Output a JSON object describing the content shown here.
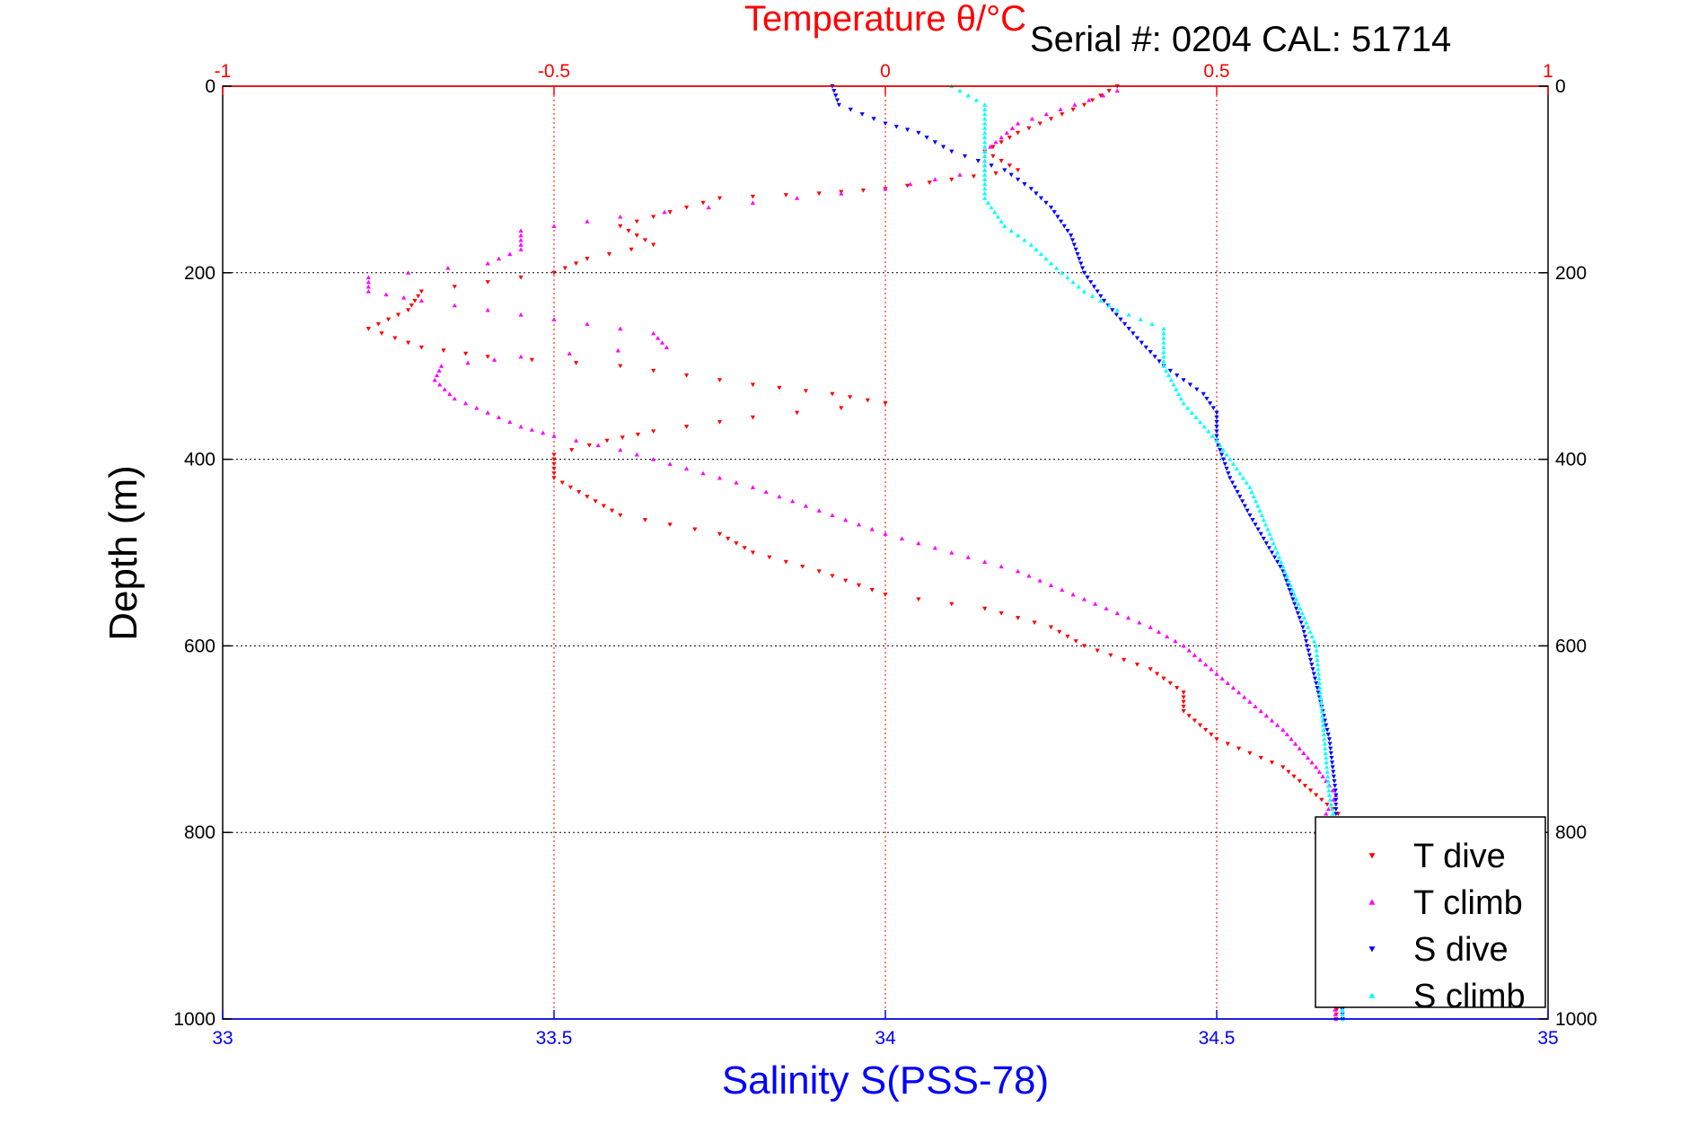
{
  "chart_data": {
    "type": "scatter",
    "title": "Temperature θ/°C",
    "annotation": "Serial #: 0204  CAL: 51714",
    "ylabel": "Depth (m)",
    "xlabel_bottom": "Salinity S(PSS-78)",
    "ylim": [
      0,
      1000
    ],
    "y_reversed": true,
    "x_top_lim": [
      -1,
      1
    ],
    "x_bottom_lim": [
      33,
      35
    ],
    "y_ticks": [
      "0",
      "200",
      "400",
      "600",
      "800",
      "1000"
    ],
    "x_top_ticks": [
      "-1",
      "-0.5",
      "0",
      "0.5",
      "1"
    ],
    "x_bottom_ticks": [
      "33",
      "33.5",
      "34",
      "34.5",
      "35"
    ],
    "grid": true,
    "legend_position": "bottom-right",
    "colors": {
      "temperature_axis": "#ff0000",
      "salinity_axis": "#0000ff",
      "grid_temperature": "#ff0000",
      "grid_depth": "#000000"
    },
    "series": [
      {
        "name": "T dive",
        "axis": "temperature",
        "color": "#ff0000",
        "marker": "triangle-down",
        "points": [
          [
            0.35,
            0
          ],
          [
            0.3,
            20
          ],
          [
            0.25,
            35
          ],
          [
            0.2,
            50
          ],
          [
            0.15,
            70
          ],
          [
            0.2,
            90
          ],
          [
            0.1,
            100
          ],
          [
            0.0,
            110
          ],
          [
            -0.1,
            115
          ],
          [
            -0.25,
            120
          ],
          [
            -0.4,
            150
          ],
          [
            -0.35,
            170
          ],
          [
            -0.45,
            185
          ],
          [
            -0.5,
            200
          ],
          [
            -0.7,
            220
          ],
          [
            -0.72,
            240
          ],
          [
            -0.78,
            260
          ],
          [
            -0.7,
            280
          ],
          [
            -0.6,
            290
          ],
          [
            -0.4,
            300
          ],
          [
            -0.2,
            320
          ],
          [
            -0.08,
            330
          ],
          [
            0.0,
            340
          ],
          [
            -0.2,
            355
          ],
          [
            -0.35,
            370
          ],
          [
            -0.42,
            380
          ],
          [
            -0.5,
            395
          ],
          [
            -0.5,
            420
          ],
          [
            -0.45,
            440
          ],
          [
            -0.4,
            460
          ],
          [
            -0.25,
            480
          ],
          [
            -0.2,
            500
          ],
          [
            -0.1,
            520
          ],
          [
            0.0,
            545
          ],
          [
            0.15,
            560
          ],
          [
            0.25,
            580
          ],
          [
            0.3,
            600
          ],
          [
            0.4,
            625
          ],
          [
            0.45,
            650
          ],
          [
            0.45,
            670
          ],
          [
            0.5,
            700
          ],
          [
            0.6,
            730
          ],
          [
            0.65,
            760
          ],
          [
            0.7,
            790
          ],
          [
            0.68,
            1000
          ]
        ]
      },
      {
        "name": "T climb",
        "axis": "temperature",
        "color": "#ff00ff",
        "marker": "triangle-up",
        "points": [
          [
            0.35,
            5
          ],
          [
            0.2,
            40
          ],
          [
            0.15,
            70
          ],
          [
            0.15,
            90
          ],
          [
            0.0,
            110
          ],
          [
            -0.2,
            125
          ],
          [
            -0.4,
            140
          ],
          [
            -0.55,
            155
          ],
          [
            -0.55,
            175
          ],
          [
            -0.6,
            190
          ],
          [
            -0.78,
            205
          ],
          [
            -0.78,
            220
          ],
          [
            -0.7,
            230
          ],
          [
            -0.5,
            250
          ],
          [
            -0.35,
            265
          ],
          [
            -0.33,
            280
          ],
          [
            -0.55,
            290
          ],
          [
            -0.67,
            300
          ],
          [
            -0.68,
            315
          ],
          [
            -0.65,
            335
          ],
          [
            -0.6,
            350
          ],
          [
            -0.55,
            365
          ],
          [
            -0.5,
            375
          ],
          [
            -0.4,
            390
          ],
          [
            -0.3,
            410
          ],
          [
            -0.2,
            430
          ],
          [
            -0.1,
            455
          ],
          [
            0.0,
            480
          ],
          [
            0.1,
            500
          ],
          [
            0.2,
            520
          ],
          [
            0.3,
            550
          ],
          [
            0.4,
            580
          ],
          [
            0.45,
            600
          ],
          [
            0.5,
            630
          ],
          [
            0.55,
            660
          ],
          [
            0.6,
            690
          ],
          [
            0.65,
            730
          ],
          [
            0.68,
            760
          ],
          [
            0.65,
            800
          ],
          [
            0.68,
            1000
          ]
        ]
      },
      {
        "name": "S dive",
        "axis": "salinity",
        "color": "#0000ff",
        "marker": "triangle-down",
        "points": [
          [
            33.92,
            0
          ],
          [
            33.93,
            20
          ],
          [
            34.0,
            40
          ],
          [
            34.05,
            50
          ],
          [
            34.1,
            70
          ],
          [
            34.18,
            90
          ],
          [
            34.22,
            110
          ],
          [
            34.25,
            130
          ],
          [
            34.28,
            160
          ],
          [
            34.3,
            200
          ],
          [
            34.33,
            230
          ],
          [
            34.38,
            270
          ],
          [
            34.42,
            300
          ],
          [
            34.48,
            330
          ],
          [
            34.5,
            350
          ],
          [
            34.5,
            380
          ],
          [
            34.52,
            420
          ],
          [
            34.55,
            460
          ],
          [
            34.6,
            520
          ],
          [
            34.63,
            580
          ],
          [
            34.65,
            640
          ],
          [
            34.67,
            700
          ],
          [
            34.68,
            760
          ],
          [
            34.68,
            800
          ],
          [
            34.69,
            1000
          ]
        ]
      },
      {
        "name": "S climb",
        "axis": "salinity",
        "color": "#00ffff",
        "marker": "triangle-up",
        "points": [
          [
            34.1,
            0
          ],
          [
            34.15,
            20
          ],
          [
            34.15,
            80
          ],
          [
            34.15,
            120
          ],
          [
            34.18,
            150
          ],
          [
            34.22,
            170
          ],
          [
            34.25,
            190
          ],
          [
            34.3,
            220
          ],
          [
            34.35,
            240
          ],
          [
            34.42,
            260
          ],
          [
            34.42,
            300
          ],
          [
            34.45,
            340
          ],
          [
            34.5,
            380
          ],
          [
            34.55,
            430
          ],
          [
            34.58,
            480
          ],
          [
            34.62,
            550
          ],
          [
            34.65,
            600
          ],
          [
            34.66,
            680
          ],
          [
            34.67,
            760
          ],
          [
            34.68,
            800
          ],
          [
            34.69,
            1000
          ]
        ]
      }
    ]
  }
}
